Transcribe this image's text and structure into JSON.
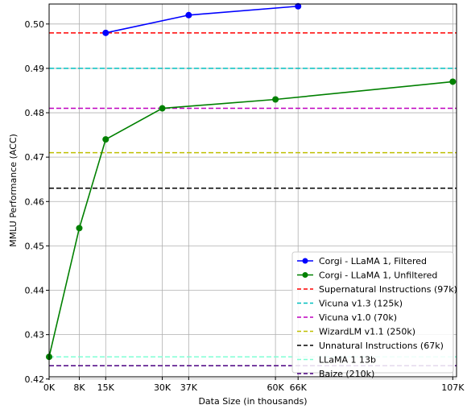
{
  "chart_data": {
    "type": "line",
    "title": "",
    "xlabel": "Data Size (in thousands)",
    "ylabel": "MMLU Performance (ACC)",
    "xlim": [
      0,
      108
    ],
    "ylim": [
      0.4205,
      0.5045
    ],
    "grid": true,
    "legend_position": "lower-right",
    "x_ticks": [
      {
        "value": 0,
        "label": "0K"
      },
      {
        "value": 8,
        "label": "8K"
      },
      {
        "value": 15,
        "label": "15K"
      },
      {
        "value": 30,
        "label": "30K"
      },
      {
        "value": 37,
        "label": "37K"
      },
      {
        "value": 60,
        "label": "60K"
      },
      {
        "value": 66,
        "label": "66K"
      },
      {
        "value": 107,
        "label": "107K"
      }
    ],
    "y_ticks": [
      {
        "value": 0.42,
        "label": "0.42"
      },
      {
        "value": 0.43,
        "label": "0.43"
      },
      {
        "value": 0.44,
        "label": "0.44"
      },
      {
        "value": 0.45,
        "label": "0.45"
      },
      {
        "value": 0.46,
        "label": "0.46"
      },
      {
        "value": 0.47,
        "label": "0.47"
      },
      {
        "value": 0.48,
        "label": "0.48"
      },
      {
        "value": 0.49,
        "label": "0.49"
      },
      {
        "value": 0.5,
        "label": "0.50"
      }
    ],
    "series": [
      {
        "name": "Corgi - LLaMA 1, Filtered",
        "color": "#0000ff",
        "style": "solid",
        "marker": true,
        "x": [
          15,
          37,
          66
        ],
        "y": [
          0.498,
          0.502,
          0.504
        ]
      },
      {
        "name": "Corgi - LLaMA 1, Unfiltered",
        "color": "#008000",
        "style": "solid",
        "marker": true,
        "x": [
          0,
          8,
          15,
          30,
          60,
          107
        ],
        "y": [
          0.425,
          0.454,
          0.474,
          0.481,
          0.483,
          0.487
        ]
      }
    ],
    "reference_lines": [
      {
        "name": "Supernatural Instructions (97k)",
        "color": "#ff0000",
        "y": 0.498
      },
      {
        "name": "Vicuna v1.3 (125k)",
        "color": "#00bfbf",
        "y": 0.49
      },
      {
        "name": "Vicuna v1.0 (70k)",
        "color": "#bf00bf",
        "y": 0.481
      },
      {
        "name": "WizardLM v1.1 (250k)",
        "color": "#bfbf00",
        "y": 0.471
      },
      {
        "name": "Unnatural Instructions (67k)",
        "color": "#000000",
        "y": 0.463
      },
      {
        "name": "LLaMA 1 13b",
        "color": "#7fffd4",
        "y": 0.425
      },
      {
        "name": "Baize (210k)",
        "color": "#4b0082",
        "y": 0.423
      }
    ]
  }
}
